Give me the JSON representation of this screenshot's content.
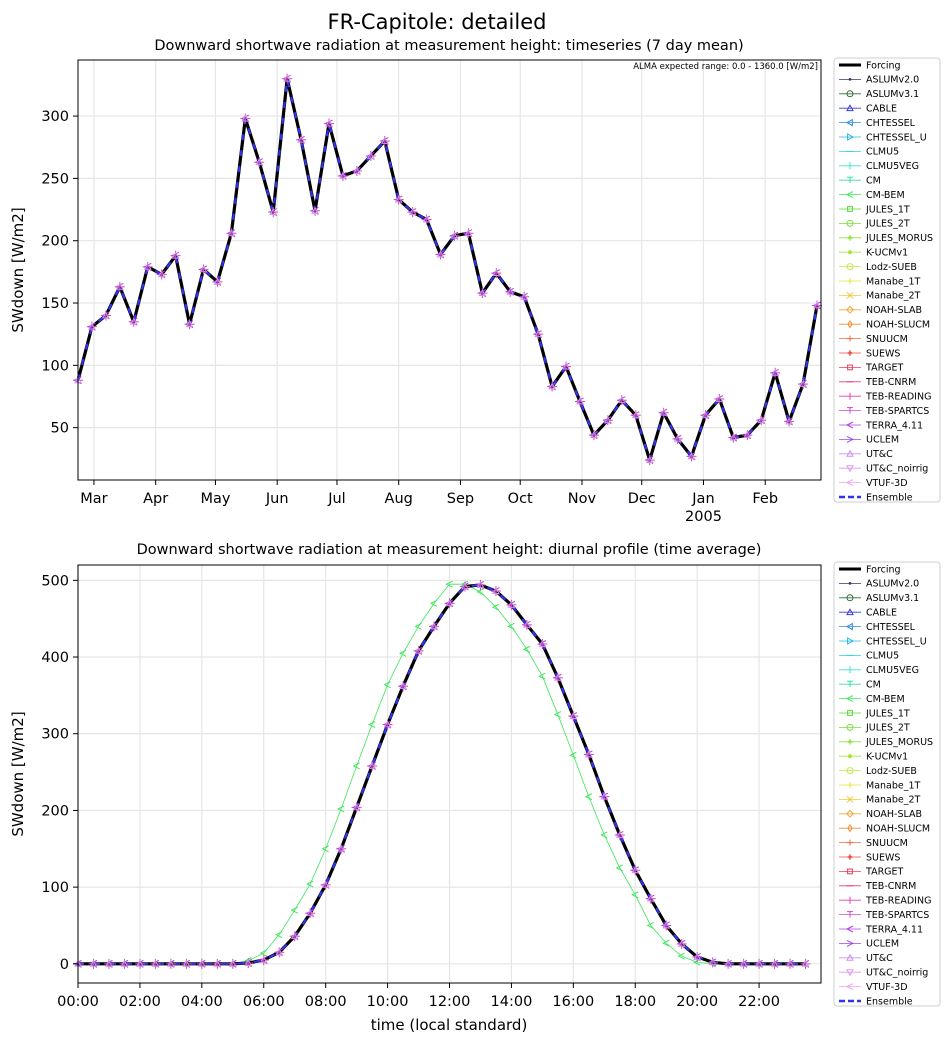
{
  "suptitle": "FR-Capitole: detailed",
  "legend_entries": [
    {
      "name": "Forcing",
      "color": "#000000",
      "marker": "",
      "dash": "",
      "lw": 3
    },
    {
      "name": "ASLUMv2.0",
      "color": "#37385f",
      "marker": "dot",
      "dash": "",
      "lw": 0.8
    },
    {
      "name": "ASLUMv3.1",
      "color": "#2e6b3a",
      "marker": "circle",
      "dash": "",
      "lw": 0.8
    },
    {
      "name": "CABLE",
      "color": "#3a3ad6",
      "marker": "tri-up",
      "dash": "",
      "lw": 0.8
    },
    {
      "name": "CHTESSEL",
      "color": "#2f8fe0",
      "marker": "tri-left",
      "dash": "",
      "lw": 0.8
    },
    {
      "name": "CHTESSEL_U",
      "color": "#26b7e8",
      "marker": "tri-right",
      "dash": "",
      "lw": 0.8
    },
    {
      "name": "CLMU5",
      "color": "#2fd3d8",
      "marker": "hline",
      "dash": "",
      "lw": 0.8
    },
    {
      "name": "CLMU5VEG",
      "color": "#3ce0c8",
      "marker": "vline",
      "dash": "",
      "lw": 0.8
    },
    {
      "name": "CM",
      "color": "#2ee0a0",
      "marker": "tee",
      "dash": "",
      "lw": 0.8
    },
    {
      "name": "CM-BEM",
      "color": "#3ce65a",
      "marker": "chev-left",
      "dash": "",
      "lw": 0.8
    },
    {
      "name": "JULES_1T",
      "color": "#5ad838",
      "marker": "square",
      "dash": "",
      "lw": 0.8
    },
    {
      "name": "JULES_2T",
      "color": "#7cdc3a",
      "marker": "hexagon",
      "dash": "",
      "lw": 0.8
    },
    {
      "name": "JULES_MORUS",
      "color": "#8fe23a",
      "marker": "plus-filled",
      "dash": "",
      "lw": 0.8
    },
    {
      "name": "K-UCMv1",
      "color": "#a6e63a",
      "marker": "star",
      "dash": "",
      "lw": 0.8
    },
    {
      "name": "Lodz-SUEB",
      "color": "#c0ea44",
      "marker": "circle",
      "dash": "",
      "lw": 0.8
    },
    {
      "name": "Manabe_1T",
      "color": "#e0e640",
      "marker": "plus",
      "dash": "",
      "lw": 0.8
    },
    {
      "name": "Manabe_2T",
      "color": "#f0c838",
      "marker": "x",
      "dash": "",
      "lw": 0.8
    },
    {
      "name": "NOAH-SLAB",
      "color": "#f0a838",
      "marker": "diamond",
      "dash": "",
      "lw": 0.8
    },
    {
      "name": "NOAH-SLUCM",
      "color": "#f08a38",
      "marker": "thin-diamond",
      "dash": "",
      "lw": 0.8
    },
    {
      "name": "SNUUCM",
      "color": "#f06a3a",
      "marker": "plus",
      "dash": "",
      "lw": 0.8
    },
    {
      "name": "SUEWS",
      "color": "#f04a44",
      "marker": "plus-filled",
      "dash": "",
      "lw": 0.8
    },
    {
      "name": "TARGET",
      "color": "#f03a5a",
      "marker": "square",
      "dash": "",
      "lw": 0.8
    },
    {
      "name": "TEB-CNRM",
      "color": "#e83a7c",
      "marker": "hline",
      "dash": "",
      "lw": 0.8
    },
    {
      "name": "TEB-READING",
      "color": "#e040a8",
      "marker": "vline",
      "dash": "",
      "lw": 0.8
    },
    {
      "name": "TEB-SPARTCS",
      "color": "#d048c8",
      "marker": "tee",
      "dash": "",
      "lw": 0.8
    },
    {
      "name": "TERRA_4.11",
      "color": "#b040e0",
      "marker": "chev-left",
      "dash": "",
      "lw": 0.8
    },
    {
      "name": "UCLEM",
      "color": "#9c48e8",
      "marker": "chev-right",
      "dash": "",
      "lw": 0.8
    },
    {
      "name": "UT&C",
      "color": "#c890f0",
      "marker": "tri-up-open",
      "dash": "",
      "lw": 0.8
    },
    {
      "name": "UT&C_noirrig",
      "color": "#e098f0",
      "marker": "tri-down-open",
      "dash": "",
      "lw": 0.8
    },
    {
      "name": "VTUF-3D",
      "color": "#f0a0e8",
      "marker": "chev-left",
      "dash": "",
      "lw": 0.8
    },
    {
      "name": "Ensemble",
      "color": "#3333ee",
      "marker": "",
      "dash": "6,3",
      "lw": 2.5
    }
  ],
  "chart_data": [
    {
      "type": "line",
      "title": "Downward shortwave radiation at measurement height: timeseries (7 day mean)",
      "annotation": "ALMA expected range: 0.0 - 1360.0 [W/m2]",
      "xlabel": "",
      "ylabel": "SWdown [W/m2]",
      "x_unit": "days since 2004-02-21",
      "xlim": [
        0,
        373
      ],
      "ylim": [
        8,
        345
      ],
      "yticks": [
        50,
        100,
        150,
        200,
        250,
        300
      ],
      "xticks": [
        {
          "value": 8,
          "label": "Mar",
          "sub": ""
        },
        {
          "value": 39,
          "label": "Apr",
          "sub": ""
        },
        {
          "value": 69,
          "label": "May",
          "sub": ""
        },
        {
          "value": 100,
          "label": "Jun",
          "sub": ""
        },
        {
          "value": 130,
          "label": "Jul",
          "sub": ""
        },
        {
          "value": 161,
          "label": "Aug",
          "sub": ""
        },
        {
          "value": 192,
          "label": "Sep",
          "sub": ""
        },
        {
          "value": 222,
          "label": "Oct",
          "sub": ""
        },
        {
          "value": 253,
          "label": "Nov",
          "sub": ""
        },
        {
          "value": 283,
          "label": "Dec",
          "sub": ""
        },
        {
          "value": 314,
          "label": "Jan",
          "sub": "2005"
        },
        {
          "value": 345,
          "label": "Feb",
          "sub": ""
        }
      ],
      "grid": true,
      "series": [
        {
          "name": "Forcing",
          "x": [
            0,
            7,
            14,
            21,
            28,
            35,
            42,
            49,
            56,
            63,
            70,
            77,
            84,
            91,
            98,
            105,
            112,
            119,
            126,
            133,
            140,
            147,
            154,
            161,
            168,
            175,
            182,
            189,
            196,
            203,
            210,
            217,
            224,
            231,
            238,
            245,
            252,
            259,
            266,
            273,
            280,
            287,
            294,
            301,
            308,
            315,
            322,
            329,
            336,
            343,
            350,
            357,
            364,
            371
          ],
          "y": [
            88,
            131,
            140,
            163,
            135,
            179,
            173,
            188,
            133,
            177,
            167,
            206,
            298,
            263,
            223,
            330,
            281,
            224,
            294,
            252,
            256,
            268,
            280,
            233,
            223,
            217,
            189,
            204,
            206,
            158,
            174,
            159,
            155,
            125,
            83,
            99,
            71,
            44,
            56,
            72,
            60,
            24,
            62,
            41,
            27,
            60,
            73,
            42,
            44,
            56,
            94,
            55,
            85,
            148
          ]
        }
      ]
    },
    {
      "type": "line",
      "title": "Downward shortwave radiation at measurement height: diurnal profile (time average)",
      "xlabel": "time (local standard)",
      "ylabel": "SWdown [W/m2]",
      "x_unit": "hours",
      "xlim": [
        0,
        24
      ],
      "ylim": [
        -25,
        520
      ],
      "yticks": [
        0,
        100,
        200,
        300,
        400,
        500
      ],
      "xticks": [
        {
          "value": 0,
          "label": "00:00"
        },
        {
          "value": 2,
          "label": "02:00"
        },
        {
          "value": 4,
          "label": "04:00"
        },
        {
          "value": 6,
          "label": "06:00"
        },
        {
          "value": 8,
          "label": "08:00"
        },
        {
          "value": 10,
          "label": "10:00"
        },
        {
          "value": 12,
          "label": "12:00"
        },
        {
          "value": 14,
          "label": "14:00"
        },
        {
          "value": 16,
          "label": "16:00"
        },
        {
          "value": 18,
          "label": "18:00"
        },
        {
          "value": 20,
          "label": "20:00"
        },
        {
          "value": 22,
          "label": "22:00"
        }
      ],
      "grid": true,
      "series": [
        {
          "name": "Forcing",
          "x": [
            0,
            0.5,
            1,
            1.5,
            2,
            2.5,
            3,
            3.5,
            4,
            4.5,
            5,
            5.5,
            6,
            6.5,
            7,
            7.5,
            8,
            8.5,
            9,
            9.5,
            10,
            10.5,
            11,
            11.5,
            12,
            12.5,
            13,
            13.5,
            14,
            14.5,
            15,
            15.5,
            16,
            16.5,
            17,
            17.5,
            18,
            18.5,
            19,
            19.5,
            20,
            20.5,
            21,
            21.5,
            22,
            22.5,
            23,
            23.5
          ],
          "y": [
            0,
            0,
            0,
            0,
            0,
            0,
            0,
            0,
            0,
            0,
            0,
            1,
            5,
            15,
            36,
            66,
            103,
            150,
            204,
            258,
            312,
            362,
            408,
            440,
            470,
            492,
            494,
            486,
            468,
            442,
            417,
            373,
            323,
            273,
            218,
            168,
            122,
            85,
            50,
            26,
            9,
            2,
            0,
            0,
            0,
            0,
            0,
            0
          ]
        },
        {
          "name": "CM-BEM",
          "x": [
            0,
            0.5,
            1,
            1.5,
            2,
            2.5,
            3,
            3.5,
            4,
            4.5,
            5,
            5.5,
            6,
            6.5,
            7,
            7.5,
            8,
            8.5,
            9,
            9.5,
            10,
            10.5,
            11,
            11.5,
            12,
            12.5,
            13,
            13.5,
            14,
            14.5,
            15,
            15.5,
            16,
            16.5,
            17,
            17.5,
            18,
            18.5,
            19,
            19.5,
            20,
            20.5,
            21,
            21.5,
            22,
            22.5,
            23,
            23.5
          ],
          "y": [
            0,
            0,
            0,
            0,
            0,
            0,
            0,
            0,
            0,
            0,
            0,
            4,
            14,
            38,
            70,
            104,
            150,
            202,
            258,
            312,
            364,
            405,
            440,
            470,
            495,
            495,
            485,
            465,
            440,
            410,
            375,
            325,
            272,
            218,
            168,
            125,
            90,
            50,
            27,
            10,
            2,
            0,
            0,
            0,
            0,
            0,
            0,
            0
          ]
        }
      ]
    }
  ]
}
